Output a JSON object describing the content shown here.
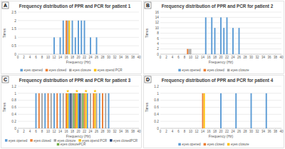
{
  "chart_data": [
    {
      "type": "bar",
      "panel": "A",
      "title": "Frequency distribution of PPR and PCR for patient 1",
      "x_label": "Frequency (Hz)",
      "y_label": "Times",
      "xlim": [
        0,
        40
      ],
      "xticks": [
        0,
        2,
        4,
        6,
        8,
        10,
        12,
        14,
        16,
        18,
        20,
        22,
        24,
        26,
        28,
        30,
        32,
        34,
        36,
        38,
        40
      ],
      "ylim": [
        0,
        2.5
      ],
      "yticks": [
        0,
        0.5,
        1,
        1.5,
        2,
        2.5
      ],
      "grid": true,
      "legend": "bottom",
      "series": [
        {
          "name": "eyes opened",
          "color": "#5b9bd5",
          "x": [
            12,
            14,
            15,
            18,
            19,
            20,
            21,
            22,
            24,
            26
          ],
          "values": [
            1,
            1,
            2,
            2,
            1,
            2,
            2,
            2,
            1,
            1
          ]
        },
        {
          "name": "eyes closed",
          "color": "#ed7d31",
          "x": [
            16
          ],
          "values": [
            2
          ]
        },
        {
          "name": "eyes closure",
          "color": "#a5a5a5",
          "x": [
            16.5
          ],
          "values": [
            2
          ]
        },
        {
          "name": "eyes opend PCR",
          "color": "#ffc000",
          "x": [
            17
          ],
          "values": [
            2
          ]
        }
      ]
    },
    {
      "type": "bar",
      "panel": "B",
      "title": "Frequency distribution of PPR and PCR for patient 2",
      "x_label": "Frequency (Hz)",
      "y_label": "Times",
      "xlim": [
        0,
        40
      ],
      "xticks": [
        0,
        2,
        4,
        6,
        8,
        10,
        12,
        14,
        16,
        18,
        20,
        22,
        24,
        26,
        28,
        30,
        32,
        34,
        36,
        38,
        40
      ],
      "ylim": [
        0,
        16
      ],
      "yticks": [
        0,
        2,
        4,
        6,
        8,
        10,
        12,
        14,
        16
      ],
      "grid": true,
      "legend": "bottom",
      "series": [
        {
          "name": "eyes opened",
          "color": "#5b9bd5",
          "x": [
            15,
            17,
            18,
            20,
            21,
            22,
            24,
            26
          ],
          "values": [
            14,
            14,
            10,
            14,
            10,
            14,
            10,
            10
          ]
        },
        {
          "name": "eyes closed",
          "color": "#ed7d31",
          "x": [
            9
          ],
          "values": [
            2
          ]
        },
        {
          "name": "eyes closure",
          "color": "#a5a5a5",
          "x": [
            9.5,
            10
          ],
          "values": [
            2,
            2
          ]
        }
      ]
    },
    {
      "type": "bar",
      "panel": "C",
      "title": "Frequency distribution of PPR and PCR for patient 3",
      "x_label": "Frequency (Hz)",
      "y_label": "Times",
      "xlim": [
        0,
        40
      ],
      "xticks": [
        0,
        2,
        4,
        6,
        8,
        10,
        12,
        14,
        16,
        18,
        20,
        22,
        24,
        26,
        28,
        30,
        32,
        34,
        36,
        38,
        40
      ],
      "ylim": [
        0,
        1.2
      ],
      "yticks": [
        0,
        0.2,
        0.4,
        0.6,
        0.8,
        1,
        1.2
      ],
      "grid": true,
      "legend": "bottom",
      "series": [
        {
          "name": "eyes opened",
          "color": "#5b9bd5",
          "x": [
            6,
            9,
            12,
            14,
            17,
            20,
            23,
            27,
            30
          ],
          "values": [
            1,
            1,
            1,
            1,
            1,
            1,
            1,
            1,
            1
          ]
        },
        {
          "name": "eyes closed",
          "color": "#ed7d31",
          "x": [
            7,
            10,
            13,
            16,
            19,
            22,
            25,
            28
          ],
          "values": [
            1,
            1,
            1,
            1,
            1,
            1,
            1,
            1
          ]
        },
        {
          "name": "eyes closure",
          "color": "#a5a5a5",
          "x": [
            8,
            11,
            15,
            18,
            21,
            24,
            26,
            29
          ],
          "values": [
            1,
            1,
            1,
            1,
            1,
            1,
            1,
            1
          ]
        },
        {
          "name": "eyes opend PCR",
          "color": "#ffc000",
          "x": [
            16.5,
            19.5,
            22.5,
            25.5
          ],
          "values": [
            1,
            1,
            1,
            1
          ],
          "marker": "star"
        },
        {
          "name": "eyes closedPCR",
          "color": "#264478",
          "x": [
            17.5,
            20.5
          ],
          "values": [
            1,
            1
          ]
        },
        {
          "name": "eyes closurePCR",
          "color": "#70ad47",
          "x": [
            18.5,
            21.5
          ],
          "values": [
            1,
            1
          ]
        }
      ]
    },
    {
      "type": "bar",
      "panel": "D",
      "title": "Frequency distribution of PPR and PCR for patient 4",
      "x_label": "Frequency (Hz)",
      "y_label": "Times",
      "xlim": [
        0,
        40
      ],
      "xticks": [
        0,
        2,
        4,
        6,
        8,
        10,
        12,
        14,
        16,
        18,
        20,
        22,
        24,
        26,
        28,
        30,
        32,
        34,
        36,
        38,
        40
      ],
      "ylim": [
        0,
        1.2
      ],
      "yticks": [
        0,
        0.2,
        0.4,
        0.6,
        0.8,
        1,
        1.2
      ],
      "grid": true,
      "legend": "bottom",
      "series": [
        {
          "name": "eyes opened",
          "color": "#5b9bd5",
          "x": [
            20,
            25,
            30,
            35
          ],
          "values": [
            1,
            1,
            1,
            1
          ]
        },
        {
          "name": "eyes closed",
          "color": "#ed7d31",
          "x": [
            14
          ],
          "values": [
            1
          ]
        },
        {
          "name": "eyes closure",
          "color": "#ffc000",
          "x": [
            14.5
          ],
          "values": [
            1
          ]
        }
      ]
    }
  ]
}
